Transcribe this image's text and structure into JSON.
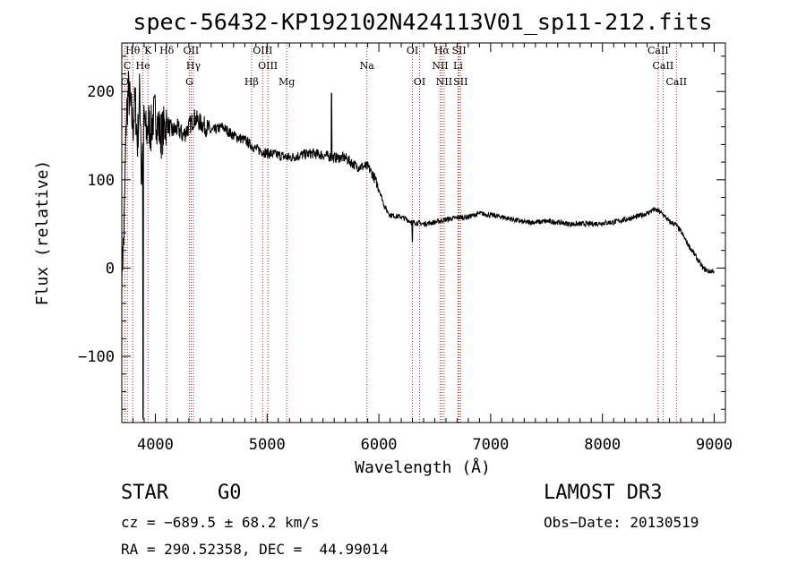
{
  "chart_data": {
    "type": "line",
    "title": "spec-56432-KP192102N424113V01_sp11-212.fits",
    "xlabel": "Wavelength (Å)",
    "ylabel": "Flux (relative)",
    "xlim": [
      3700,
      9100
    ],
    "ylim": [
      -175,
      255
    ],
    "x_ticks": [
      4000,
      5000,
      6000,
      7000,
      8000,
      9000
    ],
    "x_tick_labels": [
      "4000",
      "5000",
      "6000",
      "7000",
      "8000",
      "9000"
    ],
    "y_ticks": [
      -100,
      0,
      100,
      200
    ],
    "y_tick_labels": [
      "−100",
      "0",
      "100",
      "200"
    ],
    "grid": false,
    "series": [
      {
        "color": "#000000",
        "x": [
          3700,
          3720,
          3740,
          3760,
          3780,
          3800,
          3820,
          3840,
          3860,
          3880,
          3900,
          3920,
          3940,
          3960,
          3980,
          4000,
          4050,
          4100,
          4150,
          4200,
          4250,
          4300,
          4350,
          4400,
          4450,
          4500,
          4600,
          4700,
          4800,
          4900,
          5000,
          5100,
          5200,
          5300,
          5400,
          5500,
          5600,
          5700,
          5800,
          5900,
          5950,
          6000,
          6050,
          6100,
          6200,
          6300,
          6400,
          6500,
          6600,
          6700,
          6800,
          6900,
          7000,
          7100,
          7200,
          7300,
          7400,
          7500,
          7600,
          7700,
          7800,
          7900,
          8000,
          8100,
          8200,
          8300,
          8400,
          8450,
          8500,
          8550,
          8600,
          8650,
          8700,
          8750,
          8800,
          8850,
          8900,
          8950,
          9000
        ],
        "y": [
          -5,
          40,
          170,
          200,
          180,
          160,
          190,
          140,
          200,
          120,
          170,
          150,
          165,
          155,
          170,
          175,
          150,
          165,
          155,
          158,
          150,
          160,
          170,
          165,
          160,
          155,
          160,
          150,
          145,
          135,
          130,
          128,
          125,
          128,
          130,
          128,
          125,
          125,
          115,
          115,
          105,
          90,
          70,
          60,
          58,
          52,
          50,
          52,
          55,
          57,
          58,
          62,
          60,
          58,
          55,
          52,
          52,
          53,
          52,
          50,
          50,
          50,
          51,
          52,
          55,
          58,
          62,
          66,
          65,
          60,
          52,
          50,
          42,
          30,
          20,
          10,
          0,
          -4,
          -3
        ]
      }
    ],
    "spectral_lines": [
      {
        "name": "Hθ",
        "wavelength": 3798,
        "row": 0
      },
      {
        "name": "He",
        "wavelength": 3889,
        "row": 1
      },
      {
        "name": "K",
        "wavelength": 3934,
        "row": 0
      },
      {
        "name": "Hδ",
        "wavelength": 4102,
        "row": 0
      },
      {
        "name": "OII",
        "wavelength": 4320,
        "row": 0
      },
      {
        "name": "Hγ",
        "wavelength": 4341,
        "row": 1
      },
      {
        "name": "G",
        "wavelength": 4305,
        "row": 2
      },
      {
        "name": "OIII",
        "wavelength": 4960,
        "row": 0
      },
      {
        "name": "OIII",
        "wavelength": 5007,
        "row": 1
      },
      {
        "name": "Hβ",
        "wavelength": 4861,
        "row": 2
      },
      {
        "name": "Mg",
        "wavelength": 5175,
        "row": 2
      },
      {
        "name": "Na",
        "wavelength": 5893,
        "row": 1
      },
      {
        "name": "OI",
        "wavelength": 6300,
        "row": 0
      },
      {
        "name": "OI",
        "wavelength": 6364,
        "row": 2
      },
      {
        "name": "Hα",
        "wavelength": 6563,
        "row": 0
      },
      {
        "name": "SII",
        "wavelength": 6717,
        "row": 0
      },
      {
        "name": "NII",
        "wavelength": 6548,
        "row": 1
      },
      {
        "name": "Li",
        "wavelength": 6708,
        "row": 1
      },
      {
        "name": "NII",
        "wavelength": 6584,
        "row": 2
      },
      {
        "name": "SII",
        "wavelength": 6731,
        "row": 2
      },
      {
        "name": "CaII",
        "wavelength": 8498,
        "row": 0
      },
      {
        "name": "CaII",
        "wavelength": 8542,
        "row": 1
      },
      {
        "name": "CaII",
        "wavelength": 8662,
        "row": 2
      },
      {
        "name": "C",
        "wavelength": 3750,
        "row": 1
      },
      {
        "name": "O",
        "wavelength": 3727,
        "row": 2
      }
    ],
    "line_marker_color": "#b22222"
  },
  "info": {
    "object_class": "STAR",
    "subclass": "G0",
    "survey": "LAMOST DR3",
    "velocity": "cz = −689.5 ± 68.2 km/s",
    "obs_date": "Obs−Date: 20130519",
    "coords": "RA = 290.52358, DEC =  44.99014"
  }
}
